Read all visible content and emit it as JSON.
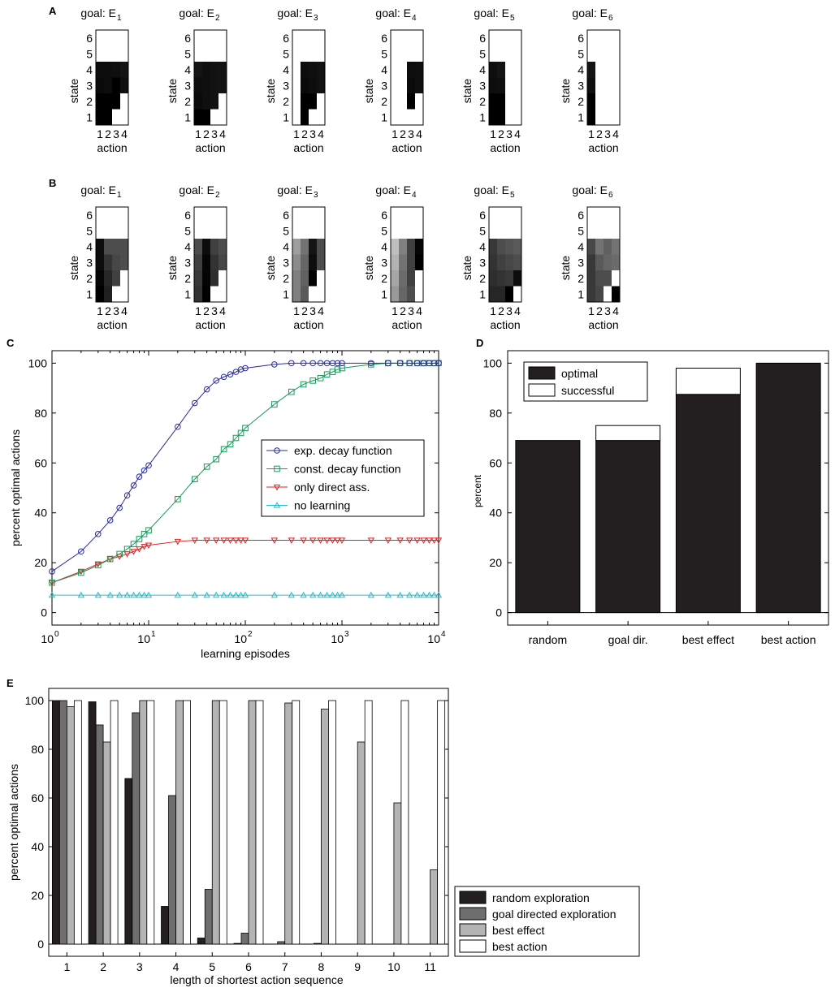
{
  "panel_letters": {
    "A": "A",
    "B": "B",
    "C": "C",
    "D": "D",
    "E": "E"
  },
  "chart_data": [
    {
      "panel": "A",
      "type": "heatmap",
      "title_prefix": "goal: E",
      "xlabel": "action",
      "ylabel": "state",
      "x_ticks": [
        "1",
        "2",
        "3",
        "4"
      ],
      "y_ticks": [
        "1",
        "2",
        "3",
        "4",
        "5",
        "6"
      ],
      "note": "grayscale value 0 = black, 1 = white; rows listed from state 6 (top) to state 1 (bottom)",
      "maps": [
        {
          "subscript": "1",
          "cells": [
            [
              1,
              1,
              1,
              1
            ],
            [
              1,
              1,
              1,
              1
            ],
            [
              0.05,
              0.05,
              0.06,
              0.08
            ],
            [
              0.04,
              0.05,
              0.0,
              0.06
            ],
            [
              0.0,
              0.0,
              0.0,
              1
            ],
            [
              0.0,
              0.0,
              1,
              1
            ]
          ]
        },
        {
          "subscript": "2",
          "cells": [
            [
              1,
              1,
              1,
              1
            ],
            [
              1,
              1,
              1,
              1
            ],
            [
              0.08,
              0.06,
              0.07,
              0.08
            ],
            [
              0.05,
              0.06,
              0.07,
              0.08
            ],
            [
              0.04,
              0.06,
              0.07,
              1
            ],
            [
              0.0,
              0.0,
              1,
              1
            ]
          ]
        },
        {
          "subscript": "3",
          "cells": [
            [
              1,
              1,
              1,
              1
            ],
            [
              1,
              1,
              1,
              1
            ],
            [
              1,
              0.05,
              0.06,
              0.07
            ],
            [
              1,
              0.04,
              0.05,
              0.07
            ],
            [
              1,
              0.0,
              0.0,
              1
            ],
            [
              1,
              0.0,
              1,
              1
            ]
          ]
        },
        {
          "subscript": "4",
          "cells": [
            [
              1,
              1,
              1,
              1
            ],
            [
              1,
              1,
              1,
              1
            ],
            [
              1,
              1,
              0.05,
              0.06
            ],
            [
              1,
              1,
              0.04,
              0.06
            ],
            [
              1,
              1,
              0.0,
              1
            ],
            [
              1,
              1,
              1,
              1
            ]
          ]
        },
        {
          "subscript": "5",
          "cells": [
            [
              1,
              1,
              1,
              1
            ],
            [
              1,
              1,
              1,
              1
            ],
            [
              0.06,
              0.08,
              1,
              1
            ],
            [
              0.05,
              0.06,
              1,
              1
            ],
            [
              0.0,
              0.0,
              1,
              1
            ],
            [
              0.0,
              0.0,
              1,
              1
            ]
          ]
        },
        {
          "subscript": "6",
          "cells": [
            [
              1,
              1,
              1,
              1
            ],
            [
              1,
              1,
              1,
              1
            ],
            [
              0.08,
              1,
              1,
              1
            ],
            [
              0.06,
              1,
              1,
              1
            ],
            [
              0.0,
              1,
              1,
              1
            ],
            [
              0.0,
              1,
              1,
              1
            ]
          ]
        }
      ]
    },
    {
      "panel": "B",
      "type": "heatmap",
      "title_prefix": "goal: E",
      "xlabel": "action",
      "ylabel": "state",
      "x_ticks": [
        "1",
        "2",
        "3",
        "4"
      ],
      "y_ticks": [
        "1",
        "2",
        "3",
        "4",
        "5",
        "6"
      ],
      "note": "grayscale value 0 = black, 1 = white; rows listed from state 6 (top) to state 1 (bottom)",
      "maps": [
        {
          "subscript": "1",
          "cells": [
            [
              1,
              1,
              1,
              1
            ],
            [
              1,
              1,
              1,
              1
            ],
            [
              0.05,
              0.3,
              0.3,
              0.3
            ],
            [
              0.05,
              0.2,
              0.28,
              0.3
            ],
            [
              0.02,
              0.15,
              0.25,
              1
            ],
            [
              0.0,
              0.12,
              1,
              1
            ]
          ]
        },
        {
          "subscript": "2",
          "cells": [
            [
              1,
              1,
              1,
              1
            ],
            [
              1,
              1,
              1,
              1
            ],
            [
              0.3,
              0.05,
              0.25,
              0.3
            ],
            [
              0.25,
              0.02,
              0.2,
              0.28
            ],
            [
              0.22,
              0.02,
              0.18,
              1
            ],
            [
              0.2,
              0.0,
              1,
              1
            ]
          ]
        },
        {
          "subscript": "3",
          "cells": [
            [
              1,
              1,
              1,
              1
            ],
            [
              1,
              1,
              1,
              1
            ],
            [
              0.62,
              0.45,
              0.08,
              0.3
            ],
            [
              0.55,
              0.4,
              0.05,
              0.3
            ],
            [
              0.5,
              0.38,
              0.02,
              1
            ],
            [
              0.5,
              0.35,
              1,
              1
            ]
          ]
        },
        {
          "subscript": "4",
          "cells": [
            [
              1,
              1,
              1,
              1
            ],
            [
              1,
              1,
              1,
              1
            ],
            [
              0.75,
              0.5,
              0.25,
              0.02
            ],
            [
              0.7,
              0.45,
              0.25,
              0.0
            ],
            [
              0.65,
              0.42,
              0.25,
              1
            ],
            [
              0.6,
              0.4,
              0.3,
              1
            ]
          ]
        },
        {
          "subscript": "5",
          "cells": [
            [
              1,
              1,
              1,
              1
            ],
            [
              1,
              1,
              1,
              1
            ],
            [
              0.22,
              0.3,
              0.33,
              0.35
            ],
            [
              0.2,
              0.25,
              0.28,
              0.3
            ],
            [
              0.18,
              0.2,
              0.22,
              0.05
            ],
            [
              0.15,
              0.15,
              0.0,
              1
            ]
          ]
        },
        {
          "subscript": "6",
          "cells": [
            [
              1,
              1,
              1,
              1
            ],
            [
              1,
              1,
              1,
              1
            ],
            [
              0.28,
              0.45,
              0.38,
              0.45
            ],
            [
              0.22,
              0.35,
              0.4,
              0.42
            ],
            [
              0.22,
              0.3,
              0.3,
              1
            ],
            [
              0.22,
              0.28,
              1,
              0.0
            ]
          ]
        }
      ]
    },
    {
      "panel": "C",
      "type": "line",
      "xscale": "log",
      "xlim": [
        1,
        10000
      ],
      "ylim": [
        -5,
        105
      ],
      "xlabel": "learning episodes",
      "ylabel": "percent optimal actions",
      "x_tick_base": "10",
      "x_tick_exponents": [
        "0",
        "1",
        "2",
        "3",
        "4"
      ],
      "y_ticks": [
        "0",
        "20",
        "40",
        "60",
        "80",
        "100"
      ],
      "x": [
        1,
        2,
        3,
        4,
        5,
        6,
        7,
        8,
        9,
        10,
        20,
        30,
        40,
        50,
        60,
        70,
        80,
        90,
        100,
        200,
        300,
        400,
        500,
        600,
        700,
        800,
        900,
        1000,
        2000,
        3000,
        4000,
        5000,
        6000,
        7000,
        8000,
        9000,
        10000
      ],
      "series": [
        {
          "name": "exp. decay function",
          "color": "#2b2b9b",
          "marker": "circle",
          "values": [
            16.5,
            24.5,
            31.5,
            37,
            42,
            47,
            51,
            54.5,
            57,
            59,
            74.5,
            84,
            89.5,
            93,
            94.5,
            95.5,
            96.5,
            97.5,
            98,
            99.5,
            100,
            100,
            100,
            100,
            100,
            100,
            100,
            100,
            100,
            100,
            100,
            100,
            100,
            100,
            100,
            100,
            100
          ]
        },
        {
          "name": "const. decay function",
          "color": "#1a9a5a",
          "marker": "square",
          "values": [
            12,
            16,
            19,
            21.5,
            23.5,
            25.5,
            27.5,
            29.5,
            31.5,
            33,
            45.5,
            53.5,
            58.5,
            61.5,
            65.5,
            67.5,
            70,
            72,
            74,
            83.5,
            88.5,
            91.5,
            93,
            94,
            95.5,
            96.5,
            97.5,
            98,
            99.5,
            100,
            100,
            100,
            100,
            100,
            100,
            100,
            100
          ]
        },
        {
          "name": "only direct ass.",
          "color": "#e02020",
          "marker": "triangle-down",
          "values": [
            12,
            16.5,
            19.5,
            21.5,
            22.5,
            23.5,
            24.5,
            25.5,
            26.5,
            27,
            28.5,
            29,
            29,
            29,
            29,
            29,
            29,
            29,
            29,
            29,
            29,
            29,
            29,
            29,
            29,
            29,
            29,
            29,
            29,
            29,
            29,
            29,
            29,
            29,
            29,
            29,
            29
          ]
        },
        {
          "name": "no learning",
          "color": "#20c0d0",
          "marker": "triangle-up",
          "values": [
            7,
            7,
            7,
            7,
            7,
            7,
            7,
            7,
            7,
            7,
            7,
            7,
            7,
            7,
            7,
            7,
            7,
            7,
            7,
            7,
            7,
            7,
            7,
            7,
            7,
            7,
            7,
            7,
            7,
            7,
            7,
            7,
            7,
            7,
            7,
            7,
            7
          ]
        }
      ],
      "legend": "inside-right"
    },
    {
      "panel": "D",
      "type": "bar",
      "stacked": true,
      "ylabel": "percent",
      "ylim": [
        -5,
        105
      ],
      "y_ticks": [
        "0",
        "20",
        "40",
        "60",
        "80",
        "100"
      ],
      "categories": [
        "random",
        "goal dir.",
        "best effect",
        "best action"
      ],
      "series": [
        {
          "name": "optimal",
          "color": "#231f20",
          "values": [
            69,
            69,
            87.5,
            100
          ]
        },
        {
          "name": "successful",
          "color": "#ffffff",
          "values": [
            0,
            6,
            10.5,
            0
          ]
        }
      ],
      "legend": "top-left"
    },
    {
      "panel": "E",
      "type": "bar",
      "grouped": true,
      "xlabel": "length of shortest action sequence",
      "ylabel": "percent optimal actions",
      "ylim": [
        -5,
        105
      ],
      "y_ticks": [
        "0",
        "20",
        "40",
        "60",
        "80",
        "100"
      ],
      "categories": [
        "1",
        "2",
        "3",
        "4",
        "5",
        "6",
        "7",
        "8",
        "9",
        "10",
        "11"
      ],
      "series": [
        {
          "name": "random exploration",
          "color": "#231f20",
          "values": [
            100,
            99.5,
            68,
            15.5,
            2.5,
            0.3,
            0,
            0,
            0,
            0,
            0
          ]
        },
        {
          "name": "goal directed exploration",
          "color": "#6e6e6e",
          "values": [
            100,
            90,
            95,
            61,
            22.5,
            4.5,
            1,
            0.3,
            0,
            0,
            0
          ]
        },
        {
          "name": "best effect",
          "color": "#b4b4b4",
          "values": [
            97.5,
            83,
            100,
            100,
            100,
            100,
            99,
            96.5,
            83,
            58,
            30.5
          ]
        },
        {
          "name": "best action",
          "color": "#ffffff",
          "values": [
            100,
            100,
            100,
            100,
            100,
            100,
            100,
            100,
            100,
            100,
            100
          ]
        }
      ],
      "legend": "outside-right-bottom"
    }
  ]
}
